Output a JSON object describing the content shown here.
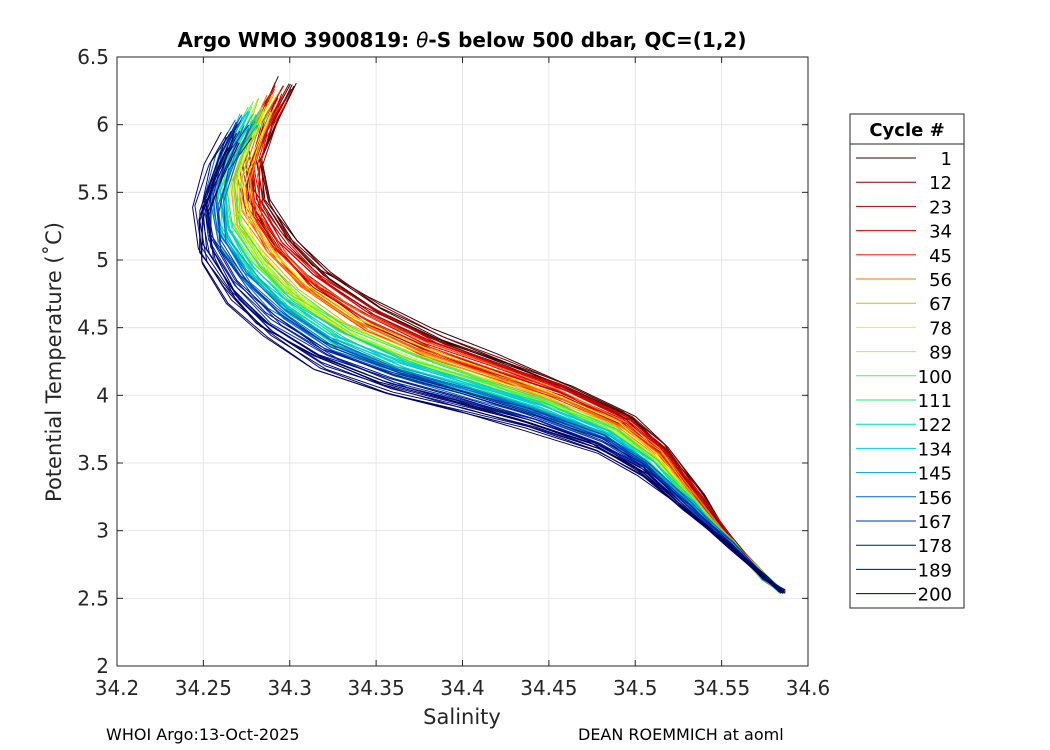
{
  "chart_data": {
    "type": "line",
    "title_prefix": "Argo WMO 3900819: ",
    "title_theta": "θ",
    "title_suffix": "-S below 500 dbar,  QC=(1,2)",
    "xlabel": "Salinity",
    "ylabel": "Potential Temperature (˚C)",
    "xlim": [
      34.2,
      34.6
    ],
    "ylim": [
      2,
      6.5
    ],
    "xticks": [
      34.2,
      34.25,
      34.3,
      34.35,
      34.4,
      34.45,
      34.5,
      34.55,
      34.6
    ],
    "xtick_labels": [
      "34.2",
      "34.25",
      "34.3",
      "34.35",
      "34.4",
      "34.45",
      "34.5",
      "34.55",
      "34.6"
    ],
    "yticks": [
      2,
      2.5,
      3,
      3.5,
      4,
      4.5,
      5,
      5.5,
      6,
      6.5
    ],
    "ytick_labels": [
      "2",
      "2.5",
      "3",
      "3.5",
      "4",
      "4.5",
      "5",
      "5.5",
      "6",
      "6.5"
    ],
    "grid": true,
    "legend": {
      "title": "Cycle #",
      "position": "right-outside",
      "entries": [
        {
          "label": "1",
          "color": "#3a0000"
        },
        {
          "label": "12",
          "color": "#8c0000"
        },
        {
          "label": "23",
          "color": "#b40000"
        },
        {
          "label": "34",
          "color": "#dc0000"
        },
        {
          "label": "45",
          "color": "#ff1e00"
        },
        {
          "label": "56",
          "color": "#f07800"
        },
        {
          "label": "67",
          "color": "#e6b400"
        },
        {
          "label": "78",
          "color": "#f0f000"
        },
        {
          "label": "89",
          "color": "#aaff28"
        },
        {
          "label": "100",
          "color": "#50f050"
        },
        {
          "label": "111",
          "color": "#28e678"
        },
        {
          "label": "122",
          "color": "#00dcb4"
        },
        {
          "label": "134",
          "color": "#00c8e6"
        },
        {
          "label": "145",
          "color": "#00a0d2"
        },
        {
          "label": "156",
          "color": "#0064c8"
        },
        {
          "label": "167",
          "color": "#0032aa"
        },
        {
          "label": "178",
          "color": "#00148c"
        },
        {
          "label": "189",
          "color": "#000a78"
        },
        {
          "label": "200",
          "color": "#00005a"
        }
      ]
    },
    "series_template": {
      "salinity": [
        34.27,
        34.26,
        34.252,
        34.255,
        34.27,
        34.29,
        34.32,
        34.36,
        34.4,
        34.44,
        34.48,
        34.505,
        34.53,
        34.555,
        34.575,
        34.585
      ],
      "temperature": [
        6.05,
        5.8,
        5.5,
        5.2,
        4.9,
        4.65,
        4.4,
        4.2,
        4.05,
        3.9,
        3.7,
        3.5,
        3.2,
        2.9,
        2.65,
        2.55
      ]
    },
    "series_shift": {
      "early_salinity_offset": 0.03,
      "early_temperature_offset": 0.25,
      "late_salinity_offset": -0.005,
      "late_temperature_offset": -0.15
    },
    "profiles_per_entry": 5
  },
  "footer": {
    "left": "WHOI Argo:13-Oct-2025",
    "right": "DEAN ROEMMICH at aoml"
  }
}
